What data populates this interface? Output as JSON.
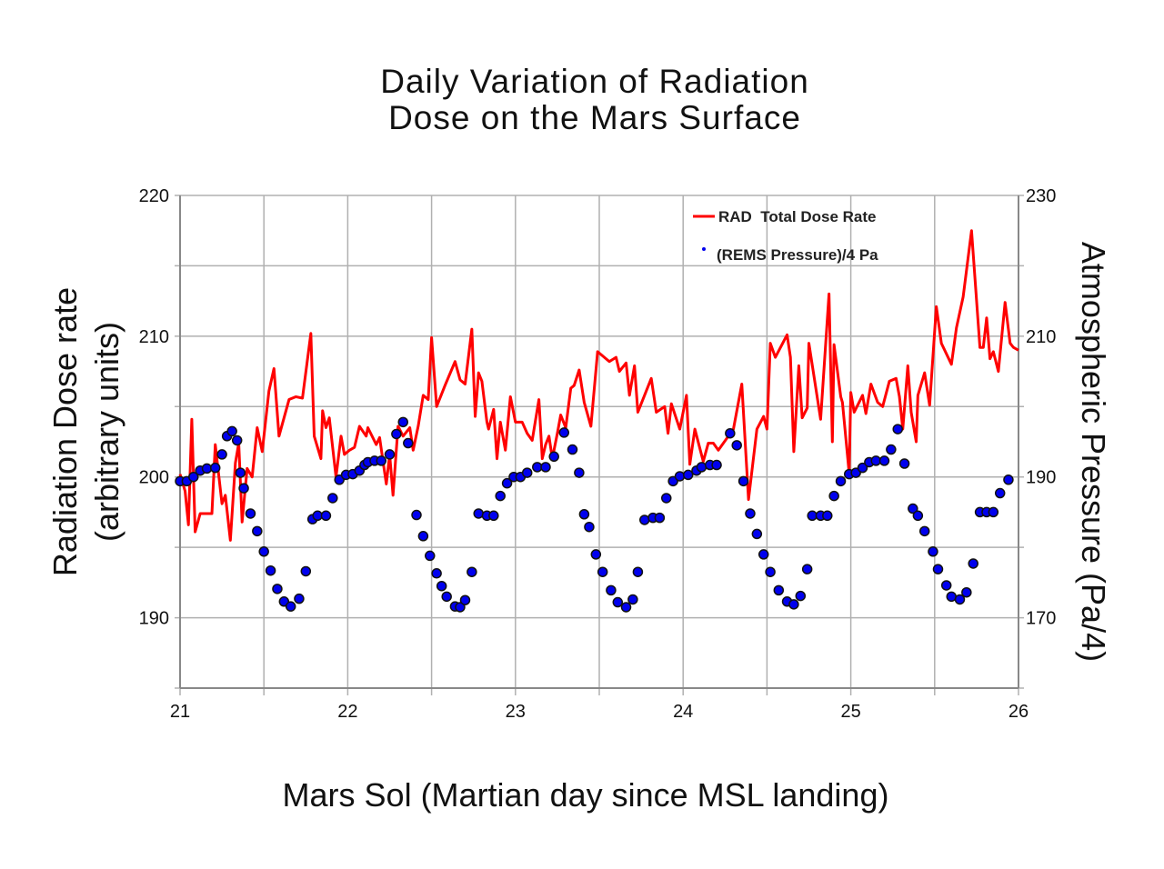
{
  "chart_data": {
    "type": "line",
    "title_lines": [
      "Daily Variation of Radiation",
      "Dose on the Mars Surface"
    ],
    "xlabel": "Mars Sol (Martian day since MSL landing)",
    "ylabel_lines": [
      "Radiation Dose rate",
      "(arbitrary units)"
    ],
    "y2label": "Atmospheric Pressure (Pa/4)",
    "xlim": [
      21,
      26
    ],
    "ylim": [
      185,
      220
    ],
    "y2lim": [
      160,
      230
    ],
    "xticks": [
      21,
      22,
      23,
      24,
      25,
      26
    ],
    "yticks": [
      190,
      200,
      210,
      220
    ],
    "y2ticks": [
      170,
      190,
      210,
      230
    ],
    "grid": true,
    "legend_placement": "top-right",
    "colors": {
      "dose": "#ff0000",
      "pressure": "#0000ee",
      "grid": "#b0b0b0"
    },
    "series": [
      {
        "name": "RAD  Total Dose Rate",
        "type": "line",
        "axis": "left",
        "points": [
          [
            21.0,
            200.2
          ],
          [
            21.03,
            199.0
          ],
          [
            21.05,
            196.6
          ],
          [
            21.07,
            204.1
          ],
          [
            21.09,
            196.1
          ],
          [
            21.12,
            197.4
          ],
          [
            21.19,
            197.4
          ],
          [
            21.21,
            202.3
          ],
          [
            21.25,
            198.1
          ],
          [
            21.27,
            198.7
          ],
          [
            21.3,
            195.5
          ],
          [
            21.33,
            201.0
          ],
          [
            21.35,
            202.4
          ],
          [
            21.37,
            196.8
          ],
          [
            21.4,
            200.6
          ],
          [
            21.43,
            200.0
          ],
          [
            21.46,
            203.5
          ],
          [
            21.49,
            201.8
          ],
          [
            21.53,
            206.1
          ],
          [
            21.56,
            207.7
          ],
          [
            21.59,
            202.9
          ],
          [
            21.65,
            205.5
          ],
          [
            21.69,
            205.7
          ],
          [
            21.73,
            205.6
          ],
          [
            21.78,
            210.2
          ],
          [
            21.8,
            202.9
          ],
          [
            21.84,
            201.3
          ],
          [
            21.85,
            204.7
          ],
          [
            21.87,
            203.5
          ],
          [
            21.89,
            204.2
          ],
          [
            21.93,
            200.0
          ],
          [
            21.96,
            202.9
          ],
          [
            21.98,
            201.6
          ],
          [
            22.01,
            201.9
          ],
          [
            22.04,
            202.1
          ],
          [
            22.07,
            203.6
          ],
          [
            22.11,
            202.9
          ],
          [
            22.12,
            203.5
          ],
          [
            22.17,
            202.3
          ],
          [
            22.19,
            202.8
          ],
          [
            22.23,
            199.5
          ],
          [
            22.25,
            201.6
          ],
          [
            22.27,
            198.7
          ],
          [
            22.3,
            203.6
          ],
          [
            22.33,
            202.9
          ],
          [
            22.37,
            203.5
          ],
          [
            22.39,
            201.9
          ],
          [
            22.42,
            203.6
          ],
          [
            22.45,
            205.8
          ],
          [
            22.48,
            205.5
          ],
          [
            22.5,
            209.9
          ],
          [
            22.53,
            205.0
          ],
          [
            22.58,
            206.5
          ],
          [
            22.64,
            208.2
          ],
          [
            22.67,
            206.9
          ],
          [
            22.7,
            206.6
          ],
          [
            22.74,
            210.5
          ],
          [
            22.76,
            204.3
          ],
          [
            22.78,
            207.4
          ],
          [
            22.8,
            206.8
          ],
          [
            22.83,
            203.9
          ],
          [
            22.84,
            203.4
          ],
          [
            22.87,
            204.8
          ],
          [
            22.89,
            201.3
          ],
          [
            22.91,
            203.9
          ],
          [
            22.94,
            201.9
          ],
          [
            22.97,
            205.7
          ],
          [
            23.0,
            203.9
          ],
          [
            23.04,
            203.9
          ],
          [
            23.07,
            203.1
          ],
          [
            23.1,
            202.6
          ],
          [
            23.14,
            205.5
          ],
          [
            23.16,
            201.3
          ],
          [
            23.18,
            202.3
          ],
          [
            23.2,
            202.9
          ],
          [
            23.22,
            201.3
          ],
          [
            23.25,
            203.1
          ],
          [
            23.27,
            204.4
          ],
          [
            23.3,
            203.5
          ],
          [
            23.33,
            206.3
          ],
          [
            23.35,
            206.5
          ],
          [
            23.38,
            207.6
          ],
          [
            23.41,
            205.3
          ],
          [
            23.45,
            203.6
          ],
          [
            23.49,
            208.9
          ],
          [
            23.56,
            208.2
          ],
          [
            23.6,
            208.5
          ],
          [
            23.62,
            207.5
          ],
          [
            23.66,
            208.1
          ],
          [
            23.68,
            205.8
          ],
          [
            23.71,
            207.9
          ],
          [
            23.73,
            204.6
          ],
          [
            23.81,
            207.0
          ],
          [
            23.84,
            204.6
          ],
          [
            23.89,
            205.0
          ],
          [
            23.91,
            203.1
          ],
          [
            23.93,
            205.2
          ],
          [
            23.98,
            203.4
          ],
          [
            24.02,
            205.8
          ],
          [
            24.04,
            200.9
          ],
          [
            24.07,
            203.4
          ],
          [
            24.12,
            201.1
          ],
          [
            24.15,
            202.4
          ],
          [
            24.18,
            202.4
          ],
          [
            24.21,
            201.9
          ],
          [
            24.3,
            203.4
          ],
          [
            24.35,
            206.6
          ],
          [
            24.39,
            198.4
          ],
          [
            24.44,
            203.4
          ],
          [
            24.48,
            204.3
          ],
          [
            24.5,
            203.4
          ],
          [
            24.52,
            209.5
          ],
          [
            24.55,
            208.5
          ],
          [
            24.62,
            210.1
          ],
          [
            24.64,
            208.5
          ],
          [
            24.66,
            201.8
          ],
          [
            24.69,
            207.9
          ],
          [
            24.71,
            204.2
          ],
          [
            24.74,
            204.9
          ],
          [
            24.75,
            209.5
          ],
          [
            24.82,
            204.1
          ],
          [
            24.87,
            213.0
          ],
          [
            24.89,
            202.5
          ],
          [
            24.9,
            209.4
          ],
          [
            24.94,
            205.7
          ],
          [
            24.95,
            205.3
          ],
          [
            24.99,
            200.3
          ],
          [
            25.0,
            206.0
          ],
          [
            25.02,
            204.6
          ],
          [
            25.07,
            205.8
          ],
          [
            25.09,
            204.5
          ],
          [
            25.12,
            206.6
          ],
          [
            25.16,
            205.3
          ],
          [
            25.19,
            205.0
          ],
          [
            25.23,
            206.8
          ],
          [
            25.27,
            207.0
          ],
          [
            25.29,
            205.7
          ],
          [
            25.31,
            203.4
          ],
          [
            25.34,
            207.9
          ],
          [
            25.36,
            204.6
          ],
          [
            25.39,
            202.5
          ],
          [
            25.4,
            205.8
          ],
          [
            25.44,
            207.4
          ],
          [
            25.47,
            205.1
          ],
          [
            25.51,
            212.1
          ],
          [
            25.54,
            209.5
          ],
          [
            25.6,
            208.0
          ],
          [
            25.63,
            210.6
          ],
          [
            25.67,
            212.8
          ],
          [
            25.72,
            217.5
          ],
          [
            25.77,
            209.2
          ],
          [
            25.79,
            209.2
          ],
          [
            25.81,
            211.3
          ],
          [
            25.83,
            208.4
          ],
          [
            25.85,
            208.9
          ],
          [
            25.88,
            207.5
          ],
          [
            25.92,
            212.4
          ],
          [
            25.95,
            209.5
          ],
          [
            25.97,
            209.2
          ],
          [
            26.0,
            209.0
          ]
        ]
      },
      {
        "name": "(REMS Pressure)/4 Pa",
        "type": "scatter",
        "axis": "right",
        "points": [
          [
            21.0,
            189.4
          ],
          [
            21.04,
            189.4
          ],
          [
            21.08,
            190.0
          ],
          [
            21.12,
            190.9
          ],
          [
            21.16,
            191.2
          ],
          [
            21.21,
            191.3
          ],
          [
            21.25,
            193.2
          ],
          [
            21.28,
            195.8
          ],
          [
            21.31,
            196.5
          ],
          [
            21.34,
            195.2
          ],
          [
            21.36,
            190.6
          ],
          [
            21.38,
            188.4
          ],
          [
            21.42,
            184.8
          ],
          [
            21.46,
            182.3
          ],
          [
            21.5,
            179.4
          ],
          [
            21.54,
            176.7
          ],
          [
            21.58,
            174.1
          ],
          [
            21.62,
            172.3
          ],
          [
            21.66,
            171.6
          ],
          [
            21.71,
            172.7
          ],
          [
            21.75,
            176.6
          ],
          [
            21.79,
            184.0
          ],
          [
            21.82,
            184.5
          ],
          [
            21.87,
            184.5
          ],
          [
            21.91,
            187.0
          ],
          [
            21.95,
            189.6
          ],
          [
            21.99,
            190.3
          ],
          [
            22.03,
            190.4
          ],
          [
            22.07,
            190.9
          ],
          [
            22.1,
            191.7
          ],
          [
            22.12,
            192.1
          ],
          [
            22.16,
            192.3
          ],
          [
            22.2,
            192.3
          ],
          [
            22.25,
            193.2
          ],
          [
            22.29,
            196.1
          ],
          [
            22.33,
            197.8
          ],
          [
            22.36,
            194.8
          ],
          [
            22.41,
            184.6
          ],
          [
            22.45,
            181.6
          ],
          [
            22.49,
            178.8
          ],
          [
            22.53,
            176.3
          ],
          [
            22.56,
            174.5
          ],
          [
            22.59,
            173.0
          ],
          [
            22.64,
            171.6
          ],
          [
            22.67,
            171.5
          ],
          [
            22.7,
            172.5
          ],
          [
            22.74,
            176.5
          ],
          [
            22.78,
            184.8
          ],
          [
            22.83,
            184.5
          ],
          [
            22.87,
            184.5
          ],
          [
            22.91,
            187.3
          ],
          [
            22.95,
            189.1
          ],
          [
            22.99,
            190.0
          ],
          [
            23.03,
            190.0
          ],
          [
            23.07,
            190.6
          ],
          [
            23.13,
            191.4
          ],
          [
            23.18,
            191.4
          ],
          [
            23.23,
            192.9
          ],
          [
            23.29,
            196.3
          ],
          [
            23.34,
            193.9
          ],
          [
            23.38,
            190.6
          ],
          [
            23.41,
            184.7
          ],
          [
            23.44,
            182.9
          ],
          [
            23.48,
            179.0
          ],
          [
            23.52,
            176.5
          ],
          [
            23.57,
            173.9
          ],
          [
            23.61,
            172.2
          ],
          [
            23.66,
            171.5
          ],
          [
            23.7,
            172.6
          ],
          [
            23.73,
            176.5
          ],
          [
            23.77,
            183.9
          ],
          [
            23.82,
            184.2
          ],
          [
            23.86,
            184.2
          ],
          [
            23.9,
            187.0
          ],
          [
            23.94,
            189.4
          ],
          [
            23.98,
            190.1
          ],
          [
            24.03,
            190.3
          ],
          [
            24.08,
            190.9
          ],
          [
            24.11,
            191.4
          ],
          [
            24.16,
            191.7
          ],
          [
            24.2,
            191.7
          ],
          [
            24.28,
            196.2
          ],
          [
            24.32,
            194.5
          ],
          [
            24.36,
            189.4
          ],
          [
            24.4,
            184.8
          ],
          [
            24.44,
            181.9
          ],
          [
            24.48,
            179.0
          ],
          [
            24.52,
            176.5
          ],
          [
            24.57,
            173.9
          ],
          [
            24.62,
            172.3
          ],
          [
            24.66,
            171.9
          ],
          [
            24.7,
            173.1
          ],
          [
            24.74,
            176.9
          ],
          [
            24.77,
            184.5
          ],
          [
            24.82,
            184.5
          ],
          [
            24.86,
            184.5
          ],
          [
            24.9,
            187.3
          ],
          [
            24.94,
            189.4
          ],
          [
            24.99,
            190.4
          ],
          [
            25.03,
            190.6
          ],
          [
            25.07,
            191.3
          ],
          [
            25.11,
            192.1
          ],
          [
            25.15,
            192.3
          ],
          [
            25.2,
            192.3
          ],
          [
            25.24,
            193.9
          ],
          [
            25.28,
            196.8
          ],
          [
            25.32,
            191.9
          ],
          [
            25.37,
            185.5
          ],
          [
            25.4,
            184.5
          ],
          [
            25.44,
            182.3
          ],
          [
            25.49,
            179.4
          ],
          [
            25.52,
            176.9
          ],
          [
            25.57,
            174.6
          ],
          [
            25.6,
            173.0
          ],
          [
            25.65,
            172.6
          ],
          [
            25.69,
            173.6
          ],
          [
            25.73,
            177.7
          ],
          [
            25.77,
            185.0
          ],
          [
            25.81,
            185.0
          ],
          [
            25.85,
            185.0
          ],
          [
            25.89,
            187.7
          ],
          [
            25.94,
            189.6
          ]
        ]
      }
    ]
  }
}
